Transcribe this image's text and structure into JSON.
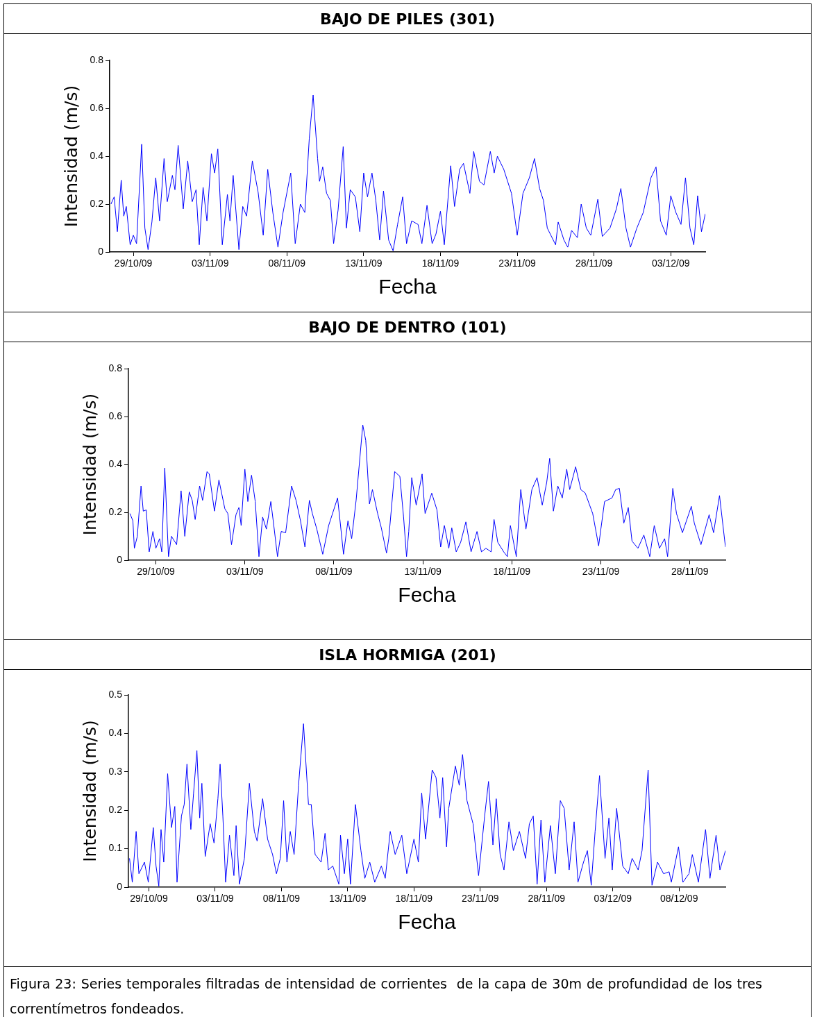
{
  "chart_data": [
    {
      "type": "line",
      "title": "BAJO DE PILES (301)",
      "xlabel": "Fecha",
      "ylabel": "Intensidad (m/s)",
      "color": "#0000ff",
      "grid": false,
      "legend": false,
      "xlim": [
        "--10-27T11:00",
        "--12-05T06:00"
      ],
      "xticks": [
        {
          "value": "--10-29",
          "label": "29/10/09"
        },
        {
          "value": "--11-03",
          "label": "03/11/09"
        },
        {
          "value": "--11-08",
          "label": "08/11/09"
        },
        {
          "value": "--11-13",
          "label": "13/11/09"
        },
        {
          "value": "--11-18",
          "label": "18/11/09"
        },
        {
          "value": "--11-23",
          "label": "23/11/09"
        },
        {
          "value": "--11-28",
          "label": "28/11/09"
        },
        {
          "value": "--12-03",
          "label": "03/12/09"
        }
      ],
      "ylim": [
        0,
        0.8
      ],
      "yticks": [
        0,
        0.2,
        0.4,
        0.6,
        0.8
      ],
      "x": [
        "--10-27T13:00",
        "--10-27T18:00",
        "--10-27T23:00",
        "--10-28T05:00",
        "--10-28T09:00",
        "--10-28T13:00",
        "--10-28T19:00",
        "--10-29T00:00",
        "--10-29T05:00",
        "--10-29T13:00",
        "--10-29T18:00",
        "--10-29T23:00",
        "--10-30T05:00",
        "--10-30T11:00",
        "--10-30T17:00",
        "--10-31T00:00",
        "--10-31T05:00",
        "--10-31T13:00",
        "--10-31T17:00",
        "--10-31T22:00",
        "--11-01T06:00",
        "--11-01T13:00",
        "--11-01T20:00",
        "--11-02T02:00",
        "--11-02T07:00",
        "--11-02T13:00",
        "--11-02T19:00",
        "--11-03T02:00",
        "--11-03T07:00",
        "--11-03T12:00",
        "--11-03T19:00",
        "--11-04T03:00",
        "--11-04T07:00",
        "--11-04T12:00",
        "--11-04T21:00",
        "--11-05T03:00",
        "--11-05T09:00",
        "--11-05T18:00",
        "--11-06T03:00",
        "--11-06T11:00",
        "--11-06T18:00",
        "--11-07T02:00",
        "--11-07T10:00",
        "--11-07T18:00",
        "--11-08T06:00",
        "--11-08T13:00",
        "--11-08T21:00",
        "--11-09T04:00",
        "--11-09T11:00",
        "--11-09T17:00",
        "--11-10T00:00",
        "--11-10T03:00",
        "--11-10T08:00",
        "--11-10T14:00",
        "--11-10T20:00",
        "--11-11T01:00",
        "--11-11T08:00",
        "--11-11T16:00",
        "--11-11T21:00",
        "--11-12T03:00",
        "--11-12T11:00",
        "--11-12T18:00",
        "--11-13T00:00",
        "--11-13T06:00",
        "--11-13T13:00",
        "--11-13T19:00",
        "--11-14T01:00",
        "--11-14T07:00",
        "--11-14T15:00",
        "--11-14T22:00",
        "--11-15T05:00",
        "--11-15T13:00",
        "--11-15T19:00",
        "--11-16T03:00",
        "--11-16T13:00",
        "--11-16T19:00",
        "--11-17T03:00",
        "--11-17T11:00",
        "--11-17T17:00",
        "--11-18T00:00",
        "--11-18T06:00",
        "--11-18T16:00",
        "--11-18T22:00",
        "--11-19T06:00",
        "--11-19T12:00",
        "--11-19T22:00",
        "--11-20T04:00",
        "--11-20T13:00",
        "--11-20T20:00",
        "--11-21T06:00",
        "--11-21T12:00",
        "--11-21T17:00",
        "--11-22T03:00",
        "--11-22T15:00",
        "--11-23T00:00",
        "--11-23T09:00",
        "--11-23T19:00",
        "--11-24T03:00",
        "--11-24T11:00",
        "--11-24T17:00",
        "--11-24T23:00",
        "--11-25T12:00",
        "--11-25T16:00",
        "--11-26T01:00",
        "--11-26T07:00",
        "--11-26T13:00",
        "--11-26T22:00",
        "--11-27T04:00",
        "--11-27T12:00",
        "--11-27T19:00",
        "--11-28T06:00",
        "--11-28T13:00",
        "--11-29T01:00",
        "--11-29T11:00",
        "--11-29T18:00",
        "--11-30T02:00",
        "--11-30T09:00",
        "--11-30T19:00",
        "--12-01T05:00",
        "--12-01T17:00",
        "--12-02T01:00",
        "--12-02T08:00",
        "--12-02T17:00",
        "--12-03T00:00",
        "--12-03T08:00",
        "--12-03T16:00",
        "--12-03T23:00",
        "--12-04T06:00",
        "--12-04T12:00",
        "--12-04T18:00",
        "--12-05T00:00",
        "--12-05T06:00"
      ],
      "values": [
        0.2,
        0.23,
        0.085,
        0.3,
        0.15,
        0.19,
        0.03,
        0.07,
        0.035,
        0.45,
        0.1,
        0.01,
        0.125,
        0.31,
        0.13,
        0.39,
        0.21,
        0.32,
        0.26,
        0.445,
        0.18,
        0.38,
        0.21,
        0.26,
        0.03,
        0.27,
        0.13,
        0.41,
        0.33,
        0.43,
        0.03,
        0.24,
        0.13,
        0.32,
        0.01,
        0.19,
        0.15,
        0.38,
        0.25,
        0.07,
        0.345,
        0.165,
        0.02,
        0.165,
        0.33,
        0.035,
        0.2,
        0.165,
        0.475,
        0.655,
        0.39,
        0.295,
        0.355,
        0.245,
        0.215,
        0.035,
        0.175,
        0.44,
        0.1,
        0.26,
        0.23,
        0.085,
        0.33,
        0.23,
        0.33,
        0.215,
        0.05,
        0.255,
        0.05,
        0.005,
        0.115,
        0.23,
        0.035,
        0.13,
        0.115,
        0.035,
        0.195,
        0.035,
        0.075,
        0.17,
        0.03,
        0.36,
        0.19,
        0.345,
        0.37,
        0.245,
        0.42,
        0.295,
        0.28,
        0.42,
        0.33,
        0.4,
        0.345,
        0.245,
        0.07,
        0.245,
        0.31,
        0.39,
        0.265,
        0.215,
        0.1,
        0.03,
        0.125,
        0.05,
        0.02,
        0.09,
        0.06,
        0.2,
        0.1,
        0.07,
        0.22,
        0.065,
        0.1,
        0.18,
        0.265,
        0.1,
        0.02,
        0.1,
        0.165,
        0.31,
        0.355,
        0.13,
        0.07,
        0.235,
        0.165,
        0.115,
        0.31,
        0.1,
        0.03,
        0.235,
        0.085,
        0.16
      ]
    },
    {
      "type": "line",
      "title": "BAJO DE DENTRO (101)",
      "xlabel": "Fecha",
      "ylabel": "Intensidad (m/s)",
      "color": "#0000ff",
      "grid": false,
      "legend": false,
      "xlim": [
        "--10-27T11:00",
        "--11-30T00:00"
      ],
      "xticks": [
        {
          "value": "--10-29",
          "label": "29/10/09"
        },
        {
          "value": "--11-03",
          "label": "03/11/09"
        },
        {
          "value": "--11-08",
          "label": "08/11/09"
        },
        {
          "value": "--11-13",
          "label": "13/11/09"
        },
        {
          "value": "--11-18",
          "label": "18/11/09"
        },
        {
          "value": "--11-23",
          "label": "23/11/09"
        },
        {
          "value": "--11-28",
          "label": "28/11/09"
        }
      ],
      "ylim": [
        0,
        0.8
      ],
      "yticks": [
        0,
        0.2,
        0.4,
        0.6,
        0.8
      ],
      "x": [
        "--10-27T13:00",
        "--10-27T17:00",
        "--10-27T19:00",
        "--10-27T23:00",
        "--10-28T04:00",
        "--10-28T07:00",
        "--10-28T11:00",
        "--10-28T15:00",
        "--10-28T20:00",
        "--10-29T00:00",
        "--10-29T05:00",
        "--10-29T08:00",
        "--10-29T12:00",
        "--10-29T17:00",
        "--10-29T21:00",
        "--10-30T04:00",
        "--10-30T10:00",
        "--10-30T15:00",
        "--10-30T21:00",
        "--10-31T01:00",
        "--10-31T05:00",
        "--10-31T11:00",
        "--10-31T15:00",
        "--10-31T21:00",
        "--11-01T00:00",
        "--11-01T07:00",
        "--11-01T13:00",
        "--11-01T21:00",
        "--11-02T01:00",
        "--11-02T06:00",
        "--11-02T12:00",
        "--11-02T16:00",
        "--11-02T19:00",
        "--11-03T00:00",
        "--11-03T04:00",
        "--11-03T09:00",
        "--11-03T14:00",
        "--11-03T19:00",
        "--11-04T00:00",
        "--11-04T05:00",
        "--11-04T11:00",
        "--11-04T15:00",
        "--11-04T20:00",
        "--11-05T01:00",
        "--11-05T07:00",
        "--11-05T15:00",
        "--11-05T21:00",
        "--11-06T03:00",
        "--11-06T09:00",
        "--11-06T15:00",
        "--11-06T19:00",
        "--11-07T01:00",
        "--11-07T09:00",
        "--11-07T17:00",
        "--11-08T05:00",
        "--11-08T09:00",
        "--11-08T13:00",
        "--11-08T19:00",
        "--11-09T00:00",
        "--11-09T06:00",
        "--11-09T15:00",
        "--11-09T19:00",
        "--11-10T00:00",
        "--11-10T04:00",
        "--11-10T11:00",
        "--11-10T16:00",
        "--11-10T23:00",
        "--11-11T02:00",
        "--11-11T10:00",
        "--11-11T17:00",
        "--11-11T22:00",
        "--11-12T02:00",
        "--11-12T05:00",
        "--11-12T09:00",
        "--11-12T15:00",
        "--11-12T23:00",
        "--11-13T03:00",
        "--11-13T12:00",
        "--11-13T19:00",
        "--11-14T00:00",
        "--11-14T05:00",
        "--11-14T11:00",
        "--11-14T15:00",
        "--11-14T21:00",
        "--11-15T03:00",
        "--11-15T10:00",
        "--11-15T17:00",
        "--11-16T01:00",
        "--11-16T07:00",
        "--11-16T13:00",
        "--11-16T20:00",
        "--11-17T00:00",
        "--11-17T05:00",
        "--11-17T13:00",
        "--11-17T18:00",
        "--11-17T22:00",
        "--11-18T06:00",
        "--11-18T12:00",
        "--11-18T19:00",
        "--11-19T03:00",
        "--11-19T10:00",
        "--11-19T17:00",
        "--11-19T23:00",
        "--11-20T03:00",
        "--11-20T08:00",
        "--11-20T14:00",
        "--11-20T20:00",
        "--11-21T02:00",
        "--11-21T06:00",
        "--11-21T14:00",
        "--11-21T21:00",
        "--11-22T03:00",
        "--11-22T13:00",
        "--11-22T21:00",
        "--11-23T05:00",
        "--11-23T15:00",
        "--11-23T20:00",
        "--11-24T01:00",
        "--11-24T07:00",
        "--11-24T13:00",
        "--11-24T18:00",
        "--11-25T02:00",
        "--11-25T10:00",
        "--11-25T18:00",
        "--11-26T00:00",
        "--11-26T07:00",
        "--11-26T14:00",
        "--11-26T18:00",
        "--11-27T01:00",
        "--11-27T06:00",
        "--11-27T14:00",
        "--11-28T02:00",
        "--11-28T06:00",
        "--11-28T15:00",
        "--11-29T02:00",
        "--11-29T08:00",
        "--11-29T16:00",
        "--11-30T00:00"
      ],
      "values": [
        0.195,
        0.165,
        0.05,
        0.1,
        0.31,
        0.205,
        0.21,
        0.035,
        0.12,
        0.05,
        0.09,
        0.035,
        0.385,
        0.015,
        0.1,
        0.065,
        0.29,
        0.1,
        0.285,
        0.25,
        0.17,
        0.31,
        0.25,
        0.37,
        0.36,
        0.205,
        0.335,
        0.215,
        0.195,
        0.065,
        0.19,
        0.22,
        0.145,
        0.38,
        0.245,
        0.355,
        0.245,
        0.015,
        0.18,
        0.13,
        0.245,
        0.145,
        0.015,
        0.12,
        0.115,
        0.31,
        0.25,
        0.165,
        0.055,
        0.25,
        0.195,
        0.13,
        0.025,
        0.145,
        0.26,
        0.145,
        0.025,
        0.165,
        0.09,
        0.25,
        0.565,
        0.5,
        0.235,
        0.295,
        0.195,
        0.135,
        0.03,
        0.09,
        0.37,
        0.35,
        0.18,
        0.015,
        0.12,
        0.345,
        0.23,
        0.36,
        0.195,
        0.28,
        0.21,
        0.055,
        0.145,
        0.05,
        0.135,
        0.035,
        0.075,
        0.16,
        0.035,
        0.12,
        0.035,
        0.05,
        0.035,
        0.17,
        0.075,
        0.035,
        0.015,
        0.145,
        0.015,
        0.295,
        0.13,
        0.295,
        0.345,
        0.23,
        0.325,
        0.425,
        0.205,
        0.31,
        0.26,
        0.38,
        0.295,
        0.39,
        0.295,
        0.28,
        0.195,
        0.06,
        0.245,
        0.26,
        0.295,
        0.3,
        0.155,
        0.22,
        0.08,
        0.05,
        0.105,
        0.015,
        0.145,
        0.05,
        0.09,
        0.015,
        0.3,
        0.195,
        0.115,
        0.225,
        0.155,
        0.065,
        0.19,
        0.115,
        0.27,
        0.055
      ]
    },
    {
      "type": "line",
      "title": "ISLA HORMIGA (201)",
      "xlabel": "Fecha",
      "ylabel": "Intensidad (m/s)",
      "color": "#0000ff",
      "grid": false,
      "legend": false,
      "annotations": [
        "Figura 23: Series temporales filtradas de intensidad de corrientes  de la capa de 30m de profundidad de los tres  correntímetros fondeados."
      ],
      "xlim": [
        "--10-27T11:00",
        "--12-11T12:00"
      ],
      "xticks": [
        {
          "value": "--10-29",
          "label": "29/10/09"
        },
        {
          "value": "--11-03",
          "label": "03/11/09"
        },
        {
          "value": "--11-08",
          "label": "08/11/09"
        },
        {
          "value": "--11-13",
          "label": "13/11/09"
        },
        {
          "value": "--11-18",
          "label": "18/11/09"
        },
        {
          "value": "--11-23",
          "label": "23/11/09"
        },
        {
          "value": "--11-28",
          "label": "28/11/09"
        },
        {
          "value": "--12-03",
          "label": "03/12/09"
        },
        {
          "value": "--12-08",
          "label": "08/12/09"
        }
      ],
      "ylim": [
        0,
        0.5
      ],
      "yticks": [
        0,
        0.1,
        0.2,
        0.3,
        0.4,
        0.5
      ],
      "x": [
        "--10-27T13:00",
        "--10-27T18:00",
        "--10-28T01:00",
        "--10-28T06:00",
        "--10-28T16:00",
        "--10-28T23:00",
        "--10-29T08:00",
        "--10-29T13:00",
        "--10-29T18:00",
        "--10-29T22:00",
        "--10-30T03:00",
        "--10-30T10:00",
        "--10-30T17:00",
        "--10-30T23:00",
        "--10-31T03:00",
        "--10-31T11:00",
        "--10-31T16:00",
        "--10-31T21:00",
        "--11-01T04:00",
        "--11-01T09:00",
        "--11-01T15:00",
        "--11-01T20:00",
        "--11-02T00:00",
        "--11-02T06:00",
        "--11-02T15:00",
        "--11-02T22:00",
        "--11-03T05:00",
        "--11-03T09:00",
        "--11-03T14:00",
        "--11-03T19:00",
        "--11-04T02:00",
        "--11-04T10:00",
        "--11-04T14:00",
        "--11-04T20:00",
        "--11-05T05:00",
        "--11-05T14:00",
        "--11-05T23:00",
        "--11-06T04:00",
        "--11-06T14:00",
        "--11-06T23:00",
        "--11-07T08:00",
        "--11-07T15:00",
        "--11-07T22:00",
        "--11-08T04:00",
        "--11-08T10:00",
        "--11-08T16:00",
        "--11-08T23:00",
        "--11-09T07:00",
        "--11-09T16:00",
        "--11-10T01:00",
        "--11-10T06:00",
        "--11-10T13:00",
        "--11-11T00:00",
        "--11-11T07:00",
        "--11-11T13:00",
        "--11-11T21:00",
        "--11-12T08:00",
        "--11-12T11:00",
        "--11-12T18:00",
        "--11-13T00:00",
        "--11-13T05:00",
        "--11-13T14:00",
        "--11-14T00:00",
        "--11-14T07:00",
        "--11-14T16:00",
        "--11-15T01:00",
        "--11-15T13:00",
        "--11-15T20:00",
        "--11-16T05:00",
        "--11-16T14:00",
        "--11-17T02:00",
        "--11-17T11:00",
        "--11-18T00:00",
        "--11-18T08:00",
        "--11-18T14:00",
        "--11-18T21:00",
        "--11-19T09:00",
        "--11-19T16:00",
        "--11-19T23:00",
        "--11-20T04:00",
        "--11-20T11:00",
        "--11-20T15:00",
        "--11-21T03:00",
        "--11-21T10:00",
        "--11-21T16:00",
        "--11-22T00:00",
        "--11-22T11:00",
        "--11-22T21:00",
        "--11-23T08:00",
        "--11-23T15:00",
        "--11-23T23:00",
        "--11-24T05:00",
        "--11-24T12:00",
        "--11-24T19:00",
        "--11-25T04:00",
        "--11-25T12:00",
        "--11-25T23:00",
        "--11-26T10:00",
        "--11-26T17:00",
        "--11-27T00:00",
        "--11-27T07:00",
        "--11-27T14:00",
        "--11-27T21:00",
        "--11-28T07:00",
        "--11-28T16:00",
        "--11-29T01:00",
        "--11-29T08:00",
        "--11-29T17:00",
        "--11-30T02:00",
        "--11-30T09:00",
        "--11-30T19:00",
        "--12-01T02:00",
        "--12-01T09:00",
        "--12-01T16:00",
        "--12-02T00:00",
        "--12-02T10:00",
        "--12-02T17:00",
        "--12-02T23:00",
        "--12-03T07:00",
        "--12-03T18:00",
        "--12-04T04:00",
        "--12-04T11:00",
        "--12-04T22:00",
        "--12-05T05:00",
        "--12-05T16:00",
        "--12-05T23:00",
        "--12-06T09:00",
        "--12-06T20:00",
        "--12-07T06:00",
        "--12-07T10:00",
        "--12-07T23:00",
        "--12-08T07:00",
        "--12-08T18:00",
        "--12-09T00:00",
        "--12-09T11:00",
        "--12-10T00:00",
        "--12-10T08:00",
        "--12-10T19:00",
        "--12-11T02:00",
        "--12-11T12:00"
      ],
      "values": [
        0.075,
        0.013,
        0.145,
        0.035,
        0.065,
        0.013,
        0.155,
        0.055,
        0.003,
        0.15,
        0.065,
        0.295,
        0.155,
        0.21,
        0.013,
        0.185,
        0.215,
        0.32,
        0.15,
        0.245,
        0.355,
        0.18,
        0.27,
        0.08,
        0.165,
        0.115,
        0.23,
        0.32,
        0.185,
        0.013,
        0.135,
        0.03,
        0.16,
        0.008,
        0.075,
        0.27,
        0.145,
        0.12,
        0.23,
        0.125,
        0.085,
        0.035,
        0.075,
        0.225,
        0.065,
        0.145,
        0.085,
        0.265,
        0.425,
        0.215,
        0.215,
        0.085,
        0.065,
        0.14,
        0.045,
        0.055,
        0.008,
        0.135,
        0.035,
        0.125,
        0.008,
        0.215,
        0.095,
        0.023,
        0.065,
        0.013,
        0.055,
        0.023,
        0.145,
        0.085,
        0.135,
        0.035,
        0.125,
        0.065,
        0.245,
        0.125,
        0.305,
        0.285,
        0.18,
        0.285,
        0.105,
        0.205,
        0.315,
        0.265,
        0.345,
        0.225,
        0.165,
        0.03,
        0.185,
        0.275,
        0.11,
        0.23,
        0.085,
        0.045,
        0.17,
        0.095,
        0.145,
        0.075,
        0.165,
        0.185,
        0.008,
        0.175,
        0.013,
        0.16,
        0.035,
        0.225,
        0.205,
        0.045,
        0.17,
        0.013,
        0.065,
        0.095,
        0.005,
        0.145,
        0.29,
        0.075,
        0.18,
        0.045,
        0.205,
        0.055,
        0.035,
        0.075,
        0.045,
        0.095,
        0.305,
        0.005,
        0.065,
        0.035,
        0.04,
        0.013,
        0.105,
        0.013,
        0.035,
        0.085,
        0.013,
        0.15,
        0.023,
        0.135,
        0.045,
        0.095
      ]
    }
  ]
}
